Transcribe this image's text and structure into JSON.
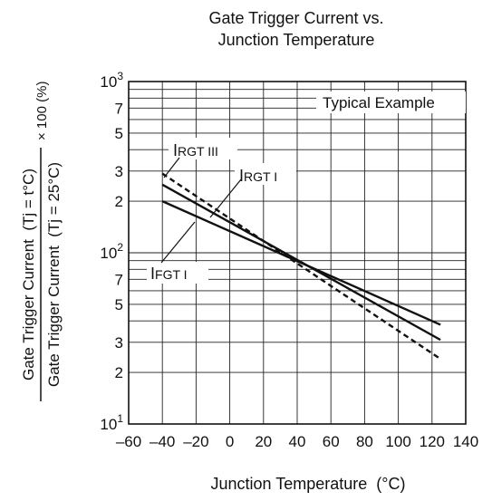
{
  "chart_data": {
    "type": "line",
    "title_lines": [
      "Gate Trigger Current vs.",
      "Junction Temperature"
    ],
    "xlabel": "Junction Temperature  (°C)",
    "ylabel": {
      "numerator": "Gate Trigger Current  (Tj = t°C)",
      "denominator": "Gate Trigger Current  (Tj = 25°C)",
      "factor": "× 100 (%)"
    },
    "y_scale": "log",
    "xlim": [
      -60,
      140
    ],
    "ylim": [
      10,
      1000
    ],
    "grid": true,
    "x_ticks": [
      -60,
      -40,
      -20,
      0,
      20,
      40,
      60,
      80,
      100,
      120,
      140
    ],
    "x_tick_labels": [
      "–60",
      "–40",
      "–20",
      "0",
      "20",
      "40",
      "60",
      "80",
      "100",
      "120",
      "140"
    ],
    "y_ticks": [
      {
        "v": 10,
        "base": "10",
        "sup": "1"
      },
      {
        "v": 20,
        "base": "2",
        "sup": ""
      },
      {
        "v": 30,
        "base": "3",
        "sup": ""
      },
      {
        "v": 50,
        "base": "5",
        "sup": ""
      },
      {
        "v": 70,
        "base": "7",
        "sup": ""
      },
      {
        "v": 100,
        "base": "10",
        "sup": "2"
      },
      {
        "v": 200,
        "base": "2",
        "sup": ""
      },
      {
        "v": 300,
        "base": "3",
        "sup": ""
      },
      {
        "v": 500,
        "base": "5",
        "sup": ""
      },
      {
        "v": 700,
        "base": "7",
        "sup": ""
      },
      {
        "v": 1000,
        "base": "10",
        "sup": "3"
      }
    ],
    "annotation": "Typical Example",
    "series": [
      {
        "name": "IFGT I",
        "main": "I",
        "sub": "FGT I",
        "style": "solid",
        "x": [
          -40,
          125
        ],
        "y": [
          200,
          38
        ]
      },
      {
        "name": "IRGT I",
        "main": "I",
        "sub": "RGT I",
        "style": "solid",
        "x": [
          -40,
          125
        ],
        "y": [
          250,
          31
        ]
      },
      {
        "name": "IRGT III",
        "main": "I",
        "sub": "RGT III",
        "style": "dashed",
        "x": [
          -40,
          125
        ],
        "y": [
          290,
          24
        ]
      }
    ]
  }
}
